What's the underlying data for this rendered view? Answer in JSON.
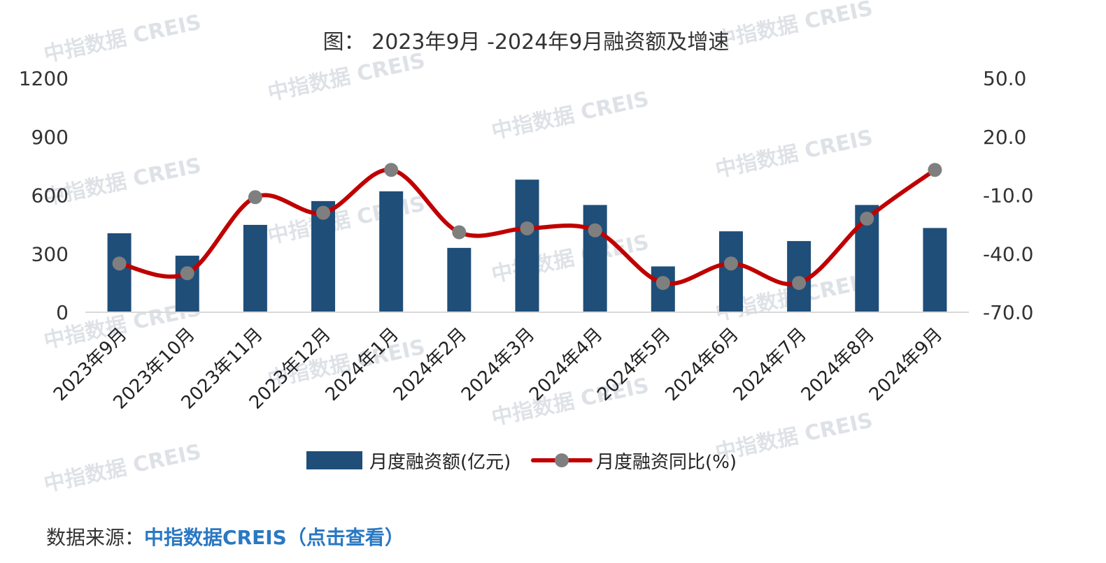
{
  "chart_data": {
    "type": "bar+line",
    "title": "图： 2023年9月 -2024年9月融资额及增速",
    "categories": [
      "2023年9月",
      "2023年10月",
      "2023年11月",
      "2023年12月",
      "2024年1月",
      "2024年2月",
      "2024年3月",
      "2024年4月",
      "2024年5月",
      "2024年6月",
      "2024年7月",
      "2024年8月",
      "2024年9月"
    ],
    "series": [
      {
        "name": "月度融资额(亿元)",
        "type": "bar",
        "axis": "left",
        "values": [
          405,
          290,
          448,
          570,
          620,
          330,
          680,
          550,
          235,
          415,
          365,
          550,
          432
        ]
      },
      {
        "name": "月度融资同比(%)",
        "type": "line",
        "axis": "right",
        "values": [
          -45,
          -50,
          -11,
          -19,
          3,
          -29,
          -27,
          -28,
          -55,
          -45,
          -55,
          -22,
          3
        ]
      }
    ],
    "y_left": {
      "ylim": [
        0,
        1200
      ],
      "ticks": [
        "0",
        "300",
        "600",
        "900",
        "1200"
      ]
    },
    "y_right": {
      "ylim": [
        -70,
        50
      ],
      "ticks": [
        "-70.0",
        "-40.0",
        "-10.0",
        "20.0",
        "50.0"
      ]
    },
    "legend_position": "bottom",
    "grid": false,
    "colors": {
      "bar": "#1f4e79",
      "line": "#c00000",
      "marker": "#7f7f7f",
      "axis": "#d9d9d9"
    }
  },
  "watermark": "中指数据 CREIS",
  "source": {
    "label": "数据来源：",
    "link_text": "中指数据CREIS（点击查看）"
  }
}
